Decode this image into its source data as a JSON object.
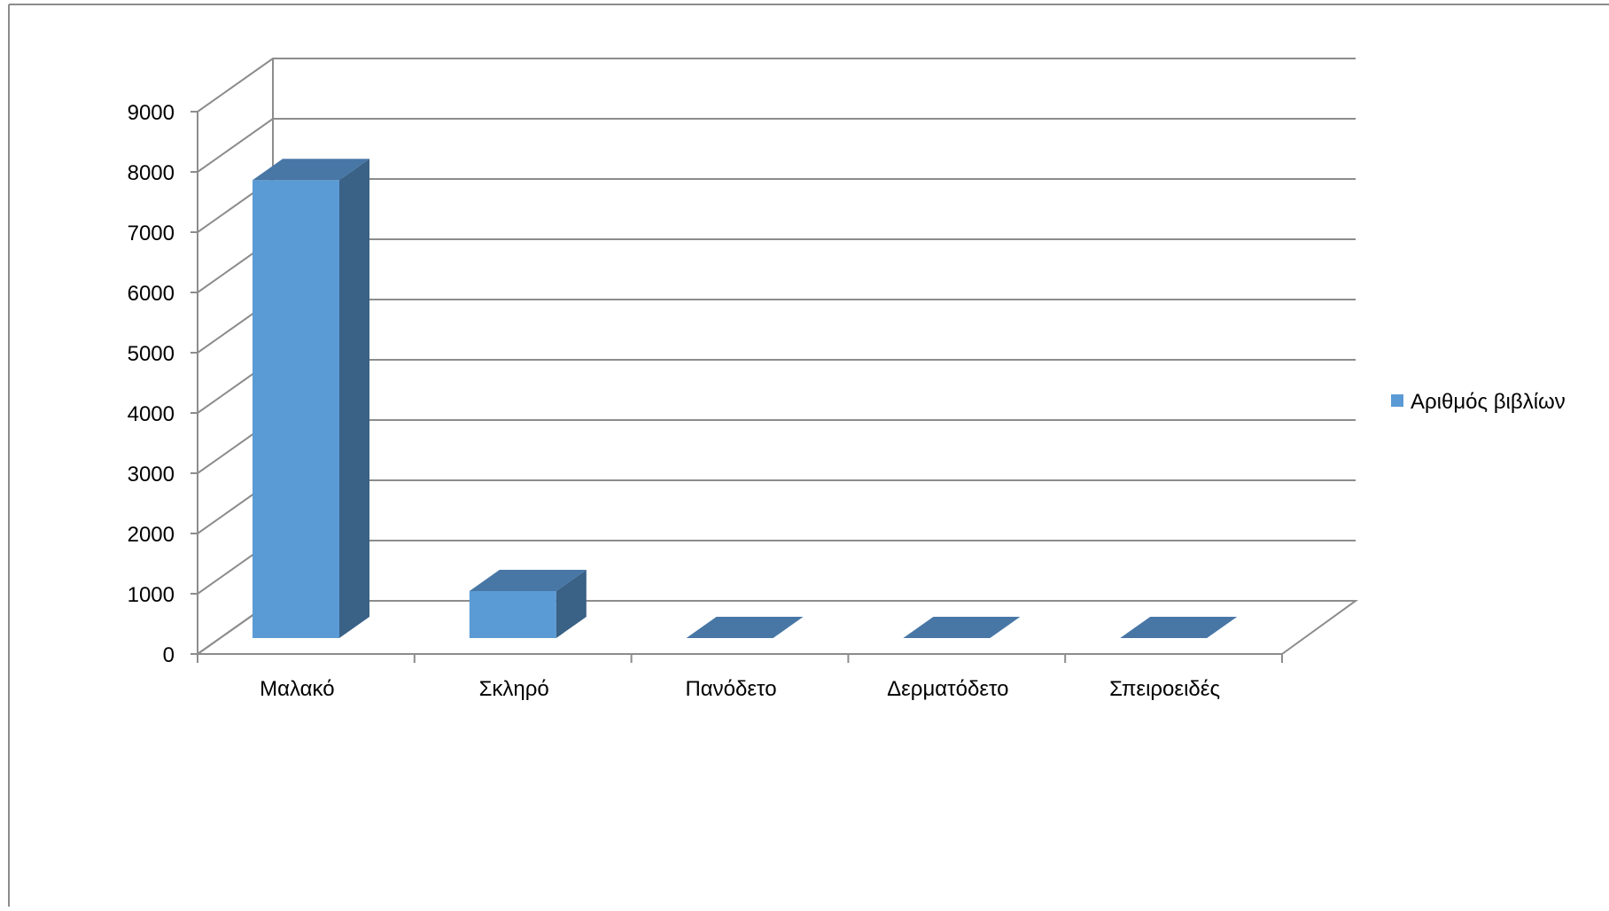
{
  "chart_data": {
    "type": "bar",
    "title": "",
    "categories": [
      "Μαλακό",
      "Σκληρό",
      "Πανόδετο",
      "Δερματόδετο",
      "Σπειροειδές"
    ],
    "series": [
      {
        "name": "Αριθμός βιβλίων",
        "values": [
          7600,
          780,
          0,
          0,
          0
        ]
      }
    ],
    "ylim": [
      0,
      9000
    ],
    "yticks": [
      0,
      1000,
      2000,
      3000,
      4000,
      5000,
      6000,
      7000,
      8000,
      9000
    ],
    "xlabel": "",
    "ylabel": "",
    "grid": true,
    "style": "3d-column",
    "legend_position": "right",
    "colors": {
      "front": "#5b9bd5",
      "side": "#3a6186",
      "top": "#4877a6",
      "grid": "#8c8c8c"
    }
  }
}
